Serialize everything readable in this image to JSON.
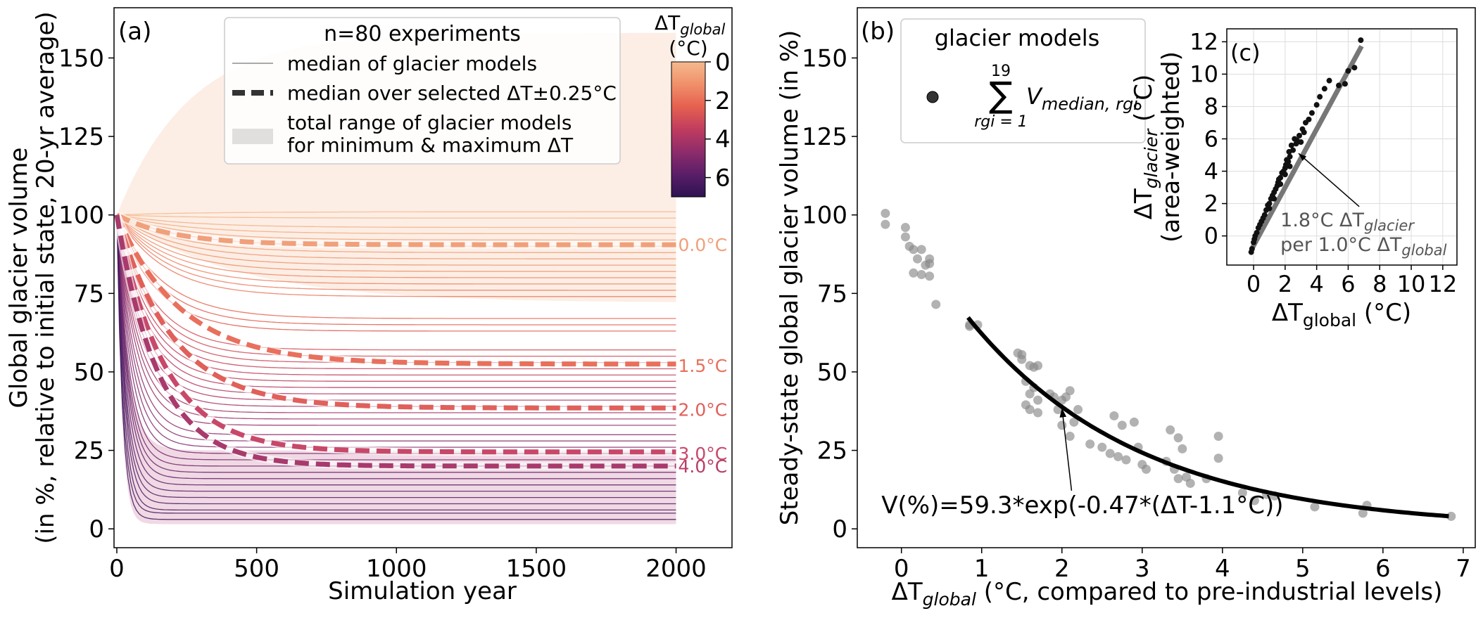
{
  "chart_data": [
    {
      "id": "a",
      "type": "line",
      "panel_label": "(a)",
      "xlabel": "Simulation year",
      "ylabel_line1": "Global glacier volume",
      "ylabel_line2": "(in %, relative to initial state, 20-yr average)",
      "xlim": [
        -10,
        2200
      ],
      "ylim": [
        -6,
        166
      ],
      "xticks": [
        0,
        500,
        1000,
        1500,
        2000
      ],
      "yticks": [
        0,
        25,
        50,
        75,
        100,
        125,
        150
      ],
      "grid": false,
      "legend": {
        "placement": "top-center",
        "title": "n=80 experiments",
        "entries": [
          {
            "key": "thin",
            "line1": "median of glacier models",
            "line2": ""
          },
          {
            "key": "dashed",
            "line1": "median over selected ΔT±0.25°C",
            "line2": ""
          },
          {
            "key": "patch",
            "line1": "total range of glacier models",
            "line2": "for minimum & maximum ΔT"
          }
        ]
      },
      "colorbar": {
        "label_prefix": "ΔT",
        "label_sub": "global",
        "label_unit": "(°C)",
        "ticks": [
          0,
          2,
          4,
          6
        ],
        "range": [
          0,
          7
        ],
        "colormap": [
          "#f5b98d",
          "#f0906a",
          "#e5604f",
          "#c03c5e",
          "#8e2c6b",
          "#5a1e68",
          "#2d1252"
        ]
      },
      "ranges": [
        {
          "name": "minimum ΔT",
          "color": "#f2b08a",
          "opacity": 0.22,
          "start": 100,
          "upper_end": 158,
          "upper_k": 260,
          "lower_end": 72,
          "lower_k": 420
        },
        {
          "name": "maximum ΔT",
          "color": "#b2407a",
          "opacity": 0.2,
          "start": 100,
          "upper_end": 25,
          "upper_k": 40,
          "lower_end": 1.5,
          "lower_k": 18
        }
      ],
      "median_lines_end": [
        101,
        99,
        96,
        94,
        92,
        90,
        88,
        86,
        84,
        82,
        80,
        78,
        76,
        74,
        67,
        65,
        63,
        57,
        55,
        53,
        51,
        49,
        47,
        45,
        43,
        41,
        39,
        37,
        35,
        33,
        30,
        28,
        26,
        24,
        22,
        20,
        18,
        16,
        14,
        12,
        10,
        8,
        6,
        5,
        3
      ],
      "median_lines_tau": [
        300,
        280,
        260,
        250,
        240,
        230,
        220,
        210,
        200,
        190,
        185,
        180,
        175,
        170,
        160,
        150,
        140,
        130,
        125,
        120,
        115,
        110,
        105,
        100,
        95,
        90,
        85,
        80,
        75,
        70,
        65,
        60,
        55,
        50,
        45,
        42,
        40,
        38,
        35,
        32,
        30,
        28,
        25,
        22,
        20
      ],
      "series": [
        {
          "name": "0.0°C",
          "end": 90.5,
          "tau": 200,
          "color": "#f0a07a"
        },
        {
          "name": "1.5°C",
          "end": 52.5,
          "tau": 230,
          "color": "#e8705c"
        },
        {
          "name": "2.0°C",
          "end": 38.5,
          "tau": 200,
          "color": "#e0605a"
        },
        {
          "name": "3.0°C",
          "end": 24.5,
          "tau": 170,
          "color": "#c8486a"
        },
        {
          "name": "4.0°C",
          "end": 20.0,
          "tau": 150,
          "color": "#a83a6c"
        }
      ],
      "line_labels": [
        {
          "text": "0.0°C",
          "y": 90.5,
          "color": "#f0a07a"
        },
        {
          "text": "1.5°C",
          "y": 52.0,
          "color": "#e8705c"
        },
        {
          "text": "2.0°C",
          "y": 38.0,
          "color": "#e0605a"
        },
        {
          "text": "3.0°C",
          "y": 24.0,
          "color": "#c8486a"
        },
        {
          "text": "4.0°C",
          "y": 20.0,
          "color": "#b83e66"
        }
      ]
    },
    {
      "id": "b",
      "type": "scatter",
      "panel_label": "(b)",
      "xlabel_prefix": "ΔT",
      "xlabel_sub": "global",
      "xlabel_suffix": " (°C, compared to pre-industrial levels)",
      "ylabel": "Steady-state global glacier volume (in %)",
      "xlim": [
        -0.55,
        7.15
      ],
      "ylim": [
        -6,
        166
      ],
      "xticks": [
        0,
        1,
        2,
        3,
        4,
        5,
        6,
        7
      ],
      "yticks": [
        0,
        25,
        50,
        75,
        100,
        125,
        150
      ],
      "grid": false,
      "legend": {
        "placement": "top-left",
        "title": "glacier models",
        "sum_top": "19",
        "sum_bottom": "rgi = 1",
        "sum_term": "V",
        "sum_term_sub": "median, rgi"
      },
      "points": [
        [
          -0.2,
          100.5
        ],
        [
          -0.2,
          97
        ],
        [
          0.05,
          96
        ],
        [
          0.05,
          93
        ],
        [
          0.1,
          90
        ],
        [
          0.15,
          89
        ],
        [
          0.2,
          86
        ],
        [
          0.25,
          89
        ],
        [
          0.3,
          84
        ],
        [
          0.35,
          86
        ],
        [
          0.35,
          84.5
        ],
        [
          0.35,
          80.5
        ],
        [
          0.15,
          81.5
        ],
        [
          0.25,
          81
        ],
        [
          0.43,
          71.5
        ],
        [
          0.85,
          65
        ],
        [
          0.85,
          64.5
        ],
        [
          0.95,
          65
        ],
        [
          1.45,
          56
        ],
        [
          1.5,
          55.5
        ],
        [
          1.5,
          54
        ],
        [
          1.55,
          47
        ],
        [
          1.6,
          52
        ],
        [
          1.65,
          51.5
        ],
        [
          1.7,
          52
        ],
        [
          1.55,
          39.5
        ],
        [
          1.6,
          38
        ],
        [
          1.7,
          37
        ],
        [
          1.6,
          43
        ],
        [
          1.65,
          45
        ],
        [
          1.7,
          41
        ],
        [
          1.85,
          43
        ],
        [
          1.9,
          42
        ],
        [
          1.95,
          38
        ],
        [
          2.0,
          33
        ],
        [
          2.0,
          41
        ],
        [
          2.05,
          42
        ],
        [
          2.1,
          44
        ],
        [
          2.1,
          29.5
        ],
        [
          2.15,
          34
        ],
        [
          2.2,
          38
        ],
        [
          2.35,
          27
        ],
        [
          2.5,
          26
        ],
        [
          2.6,
          24
        ],
        [
          2.65,
          36
        ],
        [
          2.7,
          23
        ],
        [
          2.75,
          33
        ],
        [
          2.8,
          22
        ],
        [
          2.9,
          34
        ],
        [
          2.95,
          26
        ],
        [
          3.0,
          20.5
        ],
        [
          3.05,
          19
        ],
        [
          3.3,
          21.5
        ],
        [
          3.35,
          31.5
        ],
        [
          3.4,
          19
        ],
        [
          3.45,
          16
        ],
        [
          3.45,
          29
        ],
        [
          3.5,
          25.5
        ],
        [
          3.55,
          16.5
        ],
        [
          3.6,
          14.5
        ],
        [
          3.8,
          16
        ],
        [
          3.95,
          29.5
        ],
        [
          3.95,
          22.5
        ],
        [
          4.25,
          11.5
        ],
        [
          4.4,
          9
        ],
        [
          4.55,
          11
        ],
        [
          4.65,
          10.5
        ],
        [
          5.15,
          7
        ],
        [
          5.75,
          5
        ],
        [
          5.8,
          7.5
        ],
        [
          6.85,
          4
        ]
      ],
      "fit": {
        "a": 59.3,
        "k": 0.47,
        "x0": 1.1,
        "x_start": 0.83,
        "x_end": 6.82
      },
      "annotation": {
        "text": "V(%)=59.3*exp(-0.47*(ΔT-1.1°C))",
        "point": [
          2.0,
          38.5
        ],
        "text_xy": [
          -0.25,
          5
        ]
      }
    },
    {
      "id": "c",
      "type": "scatter",
      "panel_label": "(c)",
      "xlabel_prefix": "ΔT",
      "xlabel_sub": "global",
      "xlabel_suffix": " (°C)",
      "ylabel_prefix": "ΔT",
      "ylabel_sub": "glacier",
      "ylabel_suffix": " (°C)",
      "ylabel_line2": "(area-weighted)",
      "xlim": [
        -1.7,
        12.9
      ],
      "ylim": [
        -1.8,
        12.8
      ],
      "xticks": [
        0,
        2,
        4,
        6,
        8,
        10,
        12
      ],
      "yticks": [
        0,
        2,
        4,
        6,
        8,
        10,
        12
      ],
      "grid": true,
      "fit_line": {
        "x0": -0.15,
        "x1": 6.85,
        "slope": 1.8,
        "intercept": -0.6
      },
      "points": [
        [
          -0.15,
          -1.0
        ],
        [
          -0.1,
          -0.8
        ],
        [
          0.0,
          -0.4
        ],
        [
          0.05,
          -0.2
        ],
        [
          0.1,
          0.0
        ],
        [
          0.2,
          0.2
        ],
        [
          0.3,
          0.5
        ],
        [
          0.4,
          0.7
        ],
        [
          0.5,
          0.9
        ],
        [
          0.6,
          1.1
        ],
        [
          0.7,
          1.3
        ],
        [
          0.8,
          1.6
        ],
        [
          0.9,
          1.9
        ],
        [
          1.0,
          2.0
        ],
        [
          1.1,
          2.3
        ],
        [
          1.2,
          2.5
        ],
        [
          1.3,
          2.7
        ],
        [
          1.4,
          2.9
        ],
        [
          1.5,
          3.1
        ],
        [
          1.55,
          3.3
        ],
        [
          1.6,
          3.5
        ],
        [
          1.7,
          3.6
        ],
        [
          1.8,
          3.9
        ],
        [
          1.9,
          4.0
        ],
        [
          2.0,
          4.2
        ],
        [
          2.05,
          4.4
        ],
        [
          2.1,
          4.7
        ],
        [
          2.2,
          4.6
        ],
        [
          2.25,
          5.2
        ],
        [
          2.3,
          4.9
        ],
        [
          2.4,
          5.6
        ],
        [
          2.5,
          5.3
        ],
        [
          2.6,
          6.0
        ],
        [
          2.7,
          5.7
        ],
        [
          2.75,
          5.9
        ],
        [
          2.9,
          6.2
        ],
        [
          3.0,
          5.8
        ],
        [
          3.1,
          6.6
        ],
        [
          3.2,
          6.4
        ],
        [
          3.3,
          7.0
        ],
        [
          3.5,
          7.2
        ],
        [
          3.7,
          7.6
        ],
        [
          4.0,
          8.1
        ],
        [
          4.2,
          8.6
        ],
        [
          4.5,
          9.1
        ],
        [
          4.8,
          9.6
        ],
        [
          5.4,
          9.3
        ],
        [
          5.8,
          9.4
        ],
        [
          6.0,
          10.2
        ],
        [
          6.4,
          10.4
        ],
        [
          6.8,
          12.1
        ],
        [
          1.0,
          1.7
        ],
        [
          1.3,
          2.3
        ],
        [
          1.7,
          3.2
        ],
        [
          2.0,
          3.8
        ],
        [
          2.3,
          4.3
        ]
      ],
      "annotation": {
        "line1_prefix": "1.8°C ΔT",
        "line1_sub": "glacier",
        "line2_prefix": "per 1.0°C ΔT",
        "line2_sub": "global",
        "point": [
          2.85,
          5.1
        ],
        "text_xy": [
          1.7,
          0.6
        ]
      }
    }
  ]
}
